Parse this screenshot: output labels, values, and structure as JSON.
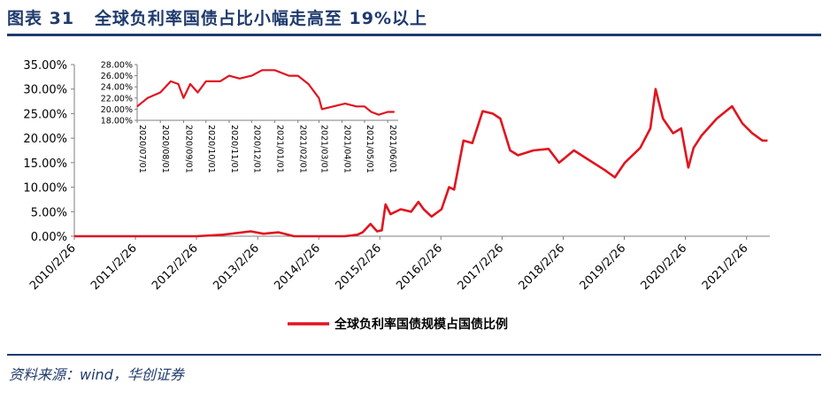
{
  "header": {
    "figure_no": "图表 31",
    "title": "全球负利率国债占比小幅走高至 19%以上"
  },
  "source": {
    "text": "资料来源：wind，华创证券"
  },
  "colors": {
    "series": "#e1141f",
    "brand": "#1f3a6e",
    "axis": "#7f7f7f"
  },
  "chart_data": [
    {
      "type": "line",
      "title": "",
      "xlabel": "",
      "ylabel": "",
      "ylim": [
        0,
        35
      ],
      "x_ticks": [
        "2010/2/26",
        "2011/2/26",
        "2012/2/26",
        "2013/2/26",
        "2014/2/26",
        "2015/2/26",
        "2016/2/26",
        "2017/2/26",
        "2018/2/26",
        "2019/2/26",
        "2020/2/26",
        "2021/2/26"
      ],
      "y_ticks": [
        "0.00%",
        "5.00%",
        "10.00%",
        "15.00%",
        "20.00%",
        "25.00%",
        "30.00%",
        "35.00%"
      ],
      "legend": "bottom-center",
      "series": [
        {
          "name": "全球负利率国债规模占国债比例",
          "points": [
            [
              "2010-02-26",
              0.0
            ],
            [
              "2012-02-26",
              0.0
            ],
            [
              "2012-08-01",
              0.3
            ],
            [
              "2013-01-15",
              1.0
            ],
            [
              "2013-04-01",
              0.5
            ],
            [
              "2013-07-01",
              0.8
            ],
            [
              "2013-10-01",
              0.0
            ],
            [
              "2014-08-01",
              0.0
            ],
            [
              "2014-10-15",
              0.3
            ],
            [
              "2014-11-15",
              0.8
            ],
            [
              "2015-01-01",
              2.5
            ],
            [
              "2015-02-10",
              1.0
            ],
            [
              "2015-03-10",
              1.2
            ],
            [
              "2015-04-01",
              6.5
            ],
            [
              "2015-05-01",
              4.5
            ],
            [
              "2015-07-01",
              5.5
            ],
            [
              "2015-09-01",
              5.0
            ],
            [
              "2015-10-15",
              7.0
            ],
            [
              "2015-11-15",
              5.5
            ],
            [
              "2016-01-01",
              4.0
            ],
            [
              "2016-03-01",
              5.5
            ],
            [
              "2016-04-15",
              10.0
            ],
            [
              "2016-05-15",
              9.5
            ],
            [
              "2016-07-10",
              19.5
            ],
            [
              "2016-09-01",
              19.0
            ],
            [
              "2016-11-01",
              25.5
            ],
            [
              "2017-01-01",
              25.0
            ],
            [
              "2017-02-15",
              24.0
            ],
            [
              "2017-04-15",
              17.5
            ],
            [
              "2017-06-01",
              16.5
            ],
            [
              "2017-09-01",
              17.5
            ],
            [
              "2017-12-01",
              17.8
            ],
            [
              "2018-02-01",
              15.0
            ],
            [
              "2018-05-01",
              17.5
            ],
            [
              "2018-08-01",
              15.5
            ],
            [
              "2018-11-01",
              13.5
            ],
            [
              "2019-01-01",
              12.0
            ],
            [
              "2019-03-01",
              15.0
            ],
            [
              "2019-06-01",
              18.0
            ],
            [
              "2019-08-01",
              22.0
            ],
            [
              "2019-09-01",
              30.0
            ],
            [
              "2019-10-15",
              24.0
            ],
            [
              "2019-12-15",
              21.0
            ],
            [
              "2020-02-01",
              22.0
            ],
            [
              "2020-03-15",
              14.0
            ],
            [
              "2020-04-15",
              18.0
            ],
            [
              "2020-06-01",
              20.5
            ],
            [
              "2020-09-01",
              24.0
            ],
            [
              "2020-12-01",
              26.5
            ],
            [
              "2021-02-01",
              23.0
            ],
            [
              "2021-04-01",
              21.0
            ],
            [
              "2021-06-01",
              19.5
            ],
            [
              "2021-07-01",
              19.5
            ]
          ]
        }
      ]
    },
    {
      "type": "line",
      "title": "",
      "xlabel": "",
      "ylabel": "",
      "ylim": [
        18,
        28
      ],
      "x_ticks": [
        "2020/07/01",
        "2020/08/01",
        "2020/09/01",
        "2020/10/01",
        "2020/11/01",
        "2020/12/01",
        "2021/01/01",
        "2021/02/01",
        "2021/03/01",
        "2021/04/01",
        "2021/05/01",
        "2021/06/01"
      ],
      "y_ticks": [
        "18.00%",
        "20.00%",
        "22.00%",
        "24.00%",
        "26.00%",
        "28.00%"
      ],
      "series": [
        {
          "name": "",
          "points": [
            [
              "2020-07-01",
              20.5
            ],
            [
              "2020-07-15",
              22.0
            ],
            [
              "2020-08-01",
              23.0
            ],
            [
              "2020-08-15",
              25.0
            ],
            [
              "2020-08-25",
              24.5
            ],
            [
              "2020-09-01",
              22.0
            ],
            [
              "2020-09-10",
              24.5
            ],
            [
              "2020-09-20",
              23.0
            ],
            [
              "2020-10-01",
              25.0
            ],
            [
              "2020-10-20",
              25.0
            ],
            [
              "2020-11-01",
              26.0
            ],
            [
              "2020-11-15",
              25.5
            ],
            [
              "2020-12-01",
              26.0
            ],
            [
              "2020-12-15",
              27.0
            ],
            [
              "2021-01-01",
              27.0
            ],
            [
              "2021-01-20",
              26.0
            ],
            [
              "2021-02-01",
              26.0
            ],
            [
              "2021-02-15",
              24.5
            ],
            [
              "2021-03-01",
              22.0
            ],
            [
              "2021-03-05",
              20.0
            ],
            [
              "2021-03-20",
              20.5
            ],
            [
              "2021-04-05",
              21.0
            ],
            [
              "2021-04-20",
              20.5
            ],
            [
              "2021-05-01",
              20.5
            ],
            [
              "2021-05-10",
              19.5
            ],
            [
              "2021-05-20",
              19.0
            ],
            [
              "2021-06-01",
              19.5
            ],
            [
              "2021-06-10",
              19.5
            ]
          ]
        }
      ]
    }
  ]
}
